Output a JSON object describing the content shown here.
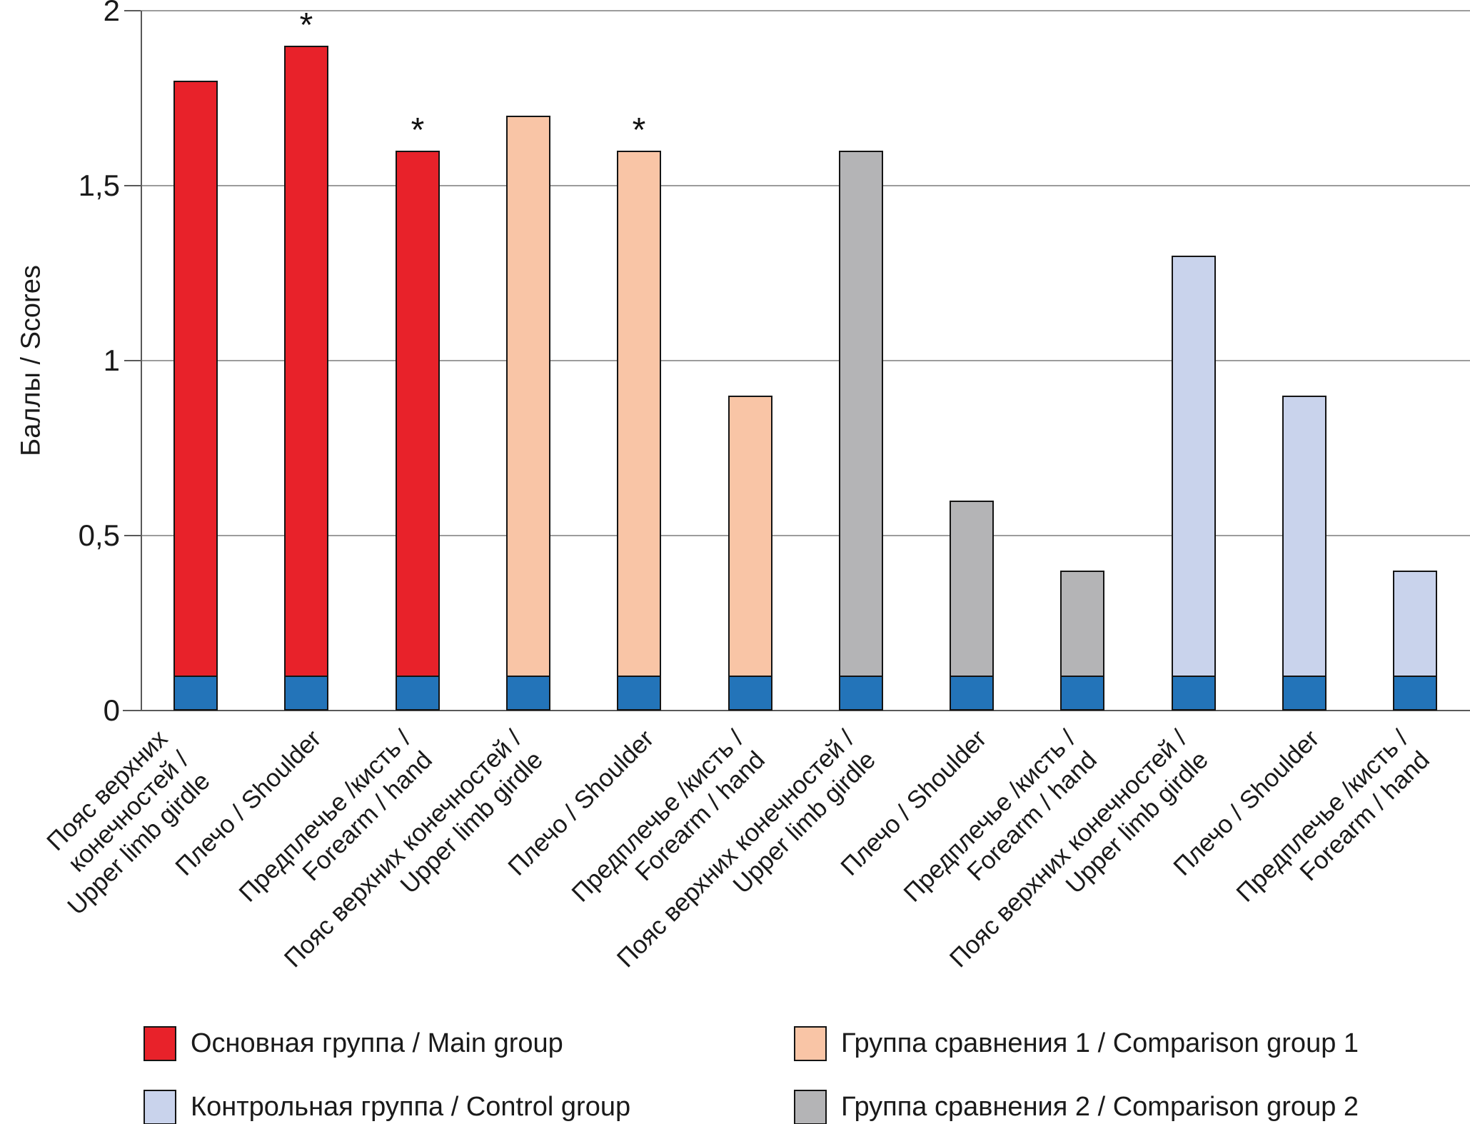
{
  "axis": {
    "y_title": "Баллы / Scores",
    "y_ticks": [
      {
        "label": "2",
        "value": 2
      },
      {
        "label": "1,5",
        "value": 1.5
      },
      {
        "label": "1",
        "value": 1
      },
      {
        "label": "0,5",
        "value": 0.5
      },
      {
        "label": "0",
        "value": 0
      }
    ]
  },
  "annotation": {
    "significance_marker": "*"
  },
  "legend": {
    "rows": [
      [
        "main",
        "comparison1"
      ],
      [
        "control",
        "comparison2"
      ]
    ]
  },
  "chart_data": {
    "type": "bar",
    "stacked": true,
    "title": "",
    "xlabel": "",
    "ylabel": "Баллы / Scores",
    "ylim": [
      0,
      2
    ],
    "grid": true,
    "base_segment": {
      "value": 0.1,
      "color": "#2374B9",
      "included_in_value": true
    },
    "groups": [
      {
        "id": "main",
        "label": "Основная группа / Main group",
        "color": "#E8222A",
        "bars": [
          {
            "category": "Пояс верхних конечностей / Upper limb girdle",
            "label_lines": [
              "Пояс верхних",
              "конечностей /",
              "Upper limb girdle"
            ],
            "value": 1.8,
            "significant": false
          },
          {
            "category": "Плечо / Shoulder",
            "label_lines": [
              "Плечо / Shoulder"
            ],
            "value": 1.9,
            "significant": true
          },
          {
            "category": "Предплечье /кисть / Forearm / hand",
            "label_lines": [
              "Предплечье /кисть /",
              "Forearm / hand"
            ],
            "value": 1.6,
            "significant": true
          }
        ]
      },
      {
        "id": "comparison1",
        "label": "Группа сравнения 1 / Comparison group 1",
        "color": "#F9C5A6",
        "bars": [
          {
            "category": "Пояс верхних конечностей / Upper limb girdle",
            "label_lines": [
              "Пояс верхних конечностей /",
              "Upper limb girdle"
            ],
            "value": 1.7,
            "significant": false
          },
          {
            "category": "Плечо / Shoulder",
            "label_lines": [
              "Плечо / Shoulder"
            ],
            "value": 1.6,
            "significant": true
          },
          {
            "category": "Предплечье /кисть / Forearm / hand",
            "label_lines": [
              "Предплечье /кисть /",
              "Forearm / hand"
            ],
            "value": 0.9,
            "significant": false
          }
        ]
      },
      {
        "id": "comparison2",
        "label": "Группа сравнения 2 / Comparison group 2",
        "color": "#B4B4B6",
        "bars": [
          {
            "category": "Пояс верхних конечностей / Upper limb girdle",
            "label_lines": [
              "Пояс верхних конечностей /",
              "Upper limb girdle"
            ],
            "value": 1.6,
            "significant": false
          },
          {
            "category": "Плечо / Shoulder",
            "label_lines": [
              "Плечо / Shoulder"
            ],
            "value": 0.6,
            "significant": false
          },
          {
            "category": "Предплечье /кисть / Forearm / hand",
            "label_lines": [
              "Предплечье /кисть /",
              "Forearm / hand"
            ],
            "value": 0.4,
            "significant": false
          }
        ]
      },
      {
        "id": "control",
        "label": "Контрольная группа / Control group",
        "color": "#C9D3EC",
        "bars": [
          {
            "category": "Пояс верхних конечностей / Upper limb girdle",
            "label_lines": [
              "Пояс верхних конечностей /",
              "Upper limb girdle"
            ],
            "value": 1.3,
            "significant": false
          },
          {
            "category": "Плечо / Shoulder",
            "label_lines": [
              "Плечо / Shoulder"
            ],
            "value": 0.9,
            "significant": false
          },
          {
            "category": "Предплечье /кисть / Forearm / hand",
            "label_lines": [
              "Предплечье /кисть /",
              "Forearm / hand"
            ],
            "value": 0.4,
            "significant": false
          }
        ]
      }
    ]
  }
}
